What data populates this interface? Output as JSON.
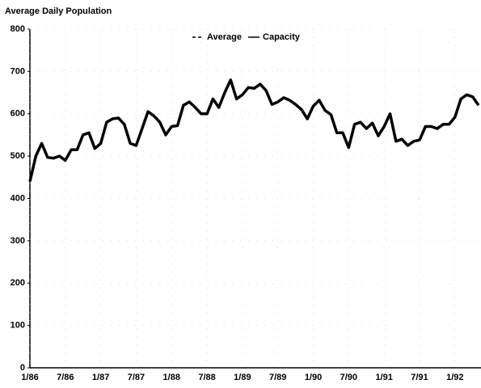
{
  "chart_data": {
    "type": "line",
    "title": "Average Daily Population",
    "categories": [
      "1/86",
      null,
      null,
      null,
      null,
      null,
      "7/86",
      null,
      null,
      null,
      null,
      null,
      "1/87",
      null,
      null,
      null,
      null,
      null,
      "7/87",
      null,
      null,
      null,
      null,
      null,
      "1/88",
      null,
      null,
      null,
      null,
      null,
      "7/88",
      null,
      null,
      null,
      null,
      null,
      "1/89",
      null,
      null,
      null,
      null,
      null,
      "7/89",
      null,
      null,
      null,
      null,
      null,
      "1/90",
      null,
      null,
      null,
      null,
      null,
      "7/90",
      null,
      null,
      null,
      null,
      null,
      "1/91",
      null,
      null,
      null,
      null,
      null,
      "7/91",
      null,
      null,
      null,
      null,
      null,
      "1/92",
      null,
      null,
      null,
      null
    ],
    "series": [
      {
        "name": "Average",
        "color": "#000000",
        "values": [
          440,
          500,
          530,
          497,
          495,
          500,
          490,
          515,
          515,
          550,
          555,
          518,
          530,
          580,
          588,
          590,
          575,
          530,
          525,
          565,
          605,
          595,
          580,
          550,
          570,
          572,
          620,
          628,
          615,
          600,
          600,
          635,
          615,
          650,
          680,
          635,
          645,
          662,
          660,
          670,
          655,
          622,
          628,
          638,
          632,
          622,
          610,
          588,
          618,
          632,
          608,
          598,
          555,
          555,
          520,
          575,
          580,
          565,
          578,
          548,
          570,
          600,
          535,
          540,
          525,
          535,
          538,
          570,
          570,
          565,
          575,
          575,
          592,
          635,
          645,
          640,
          620
        ]
      }
    ],
    "legend": [
      {
        "label": "Average",
        "style": "dashed"
      },
      {
        "label": "Capacity",
        "style": "solid"
      }
    ],
    "ylim": [
      0,
      800
    ],
    "yticks": [
      0,
      100,
      200,
      300,
      400,
      500,
      600,
      700,
      800
    ],
    "grid": true
  }
}
